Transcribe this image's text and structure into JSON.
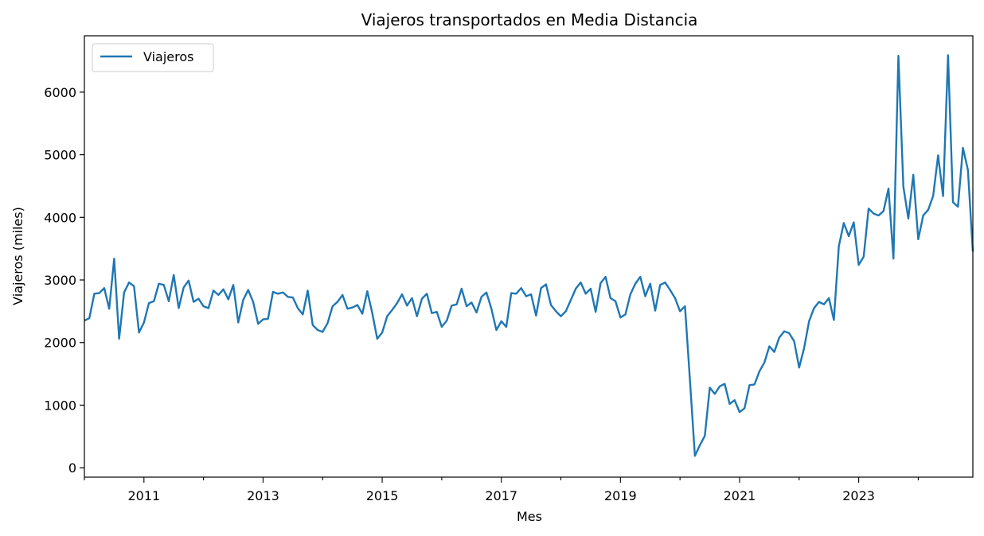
{
  "chart_data": {
    "type": "line",
    "title": "Viajeros transportados en Media Distancia",
    "xlabel": "Mes",
    "ylabel": "Viajeros (miles)",
    "x_start": "2010-01",
    "x_end": "2024-12",
    "xlim": [
      "2010-01",
      "2024-12"
    ],
    "ylim": [
      -150,
      6900
    ],
    "x_major_ticks": [
      "2011",
      "2013",
      "2015",
      "2017",
      "2019",
      "2021",
      "2023"
    ],
    "y_ticks": [
      0,
      1000,
      2000,
      3000,
      4000,
      5000,
      6000
    ],
    "grid": false,
    "legend": {
      "placement": "upper-left",
      "entries": [
        "Viajeros"
      ]
    },
    "color": "#1f77b4",
    "series": [
      {
        "name": "Viajeros",
        "values": [
          2350,
          2390,
          2780,
          2790,
          2870,
          2540,
          3340,
          2060,
          2800,
          2960,
          2900,
          2160,
          2320,
          2630,
          2660,
          2940,
          2920,
          2660,
          3080,
          2550,
          2880,
          2990,
          2650,
          2700,
          2580,
          2550,
          2830,
          2760,
          2850,
          2690,
          2920,
          2320,
          2680,
          2840,
          2650,
          2300,
          2370,
          2380,
          2810,
          2780,
          2800,
          2730,
          2720,
          2550,
          2450,
          2830,
          2280,
          2200,
          2170,
          2310,
          2580,
          2650,
          2760,
          2540,
          2560,
          2600,
          2460,
          2820,
          2470,
          2060,
          2160,
          2420,
          2520,
          2630,
          2770,
          2590,
          2710,
          2420,
          2700,
          2780,
          2470,
          2490,
          2250,
          2350,
          2590,
          2610,
          2860,
          2580,
          2640,
          2480,
          2730,
          2800,
          2540,
          2200,
          2340,
          2250,
          2790,
          2780,
          2870,
          2740,
          2770,
          2430,
          2870,
          2930,
          2600,
          2500,
          2420,
          2500,
          2680,
          2860,
          2960,
          2780,
          2860,
          2490,
          2950,
          3050,
          2710,
          2660,
          2400,
          2450,
          2770,
          2940,
          3050,
          2740,
          2940,
          2510,
          2920,
          2960,
          2840,
          2710,
          2500,
          2580,
          1400,
          190,
          360,
          510,
          1280,
          1180,
          1300,
          1340,
          1020,
          1080,
          890,
          950,
          1320,
          1330,
          1540,
          1680,
          1940,
          1850,
          2080,
          2180,
          2150,
          2020,
          1600,
          1910,
          2340,
          2550,
          2650,
          2610,
          2710,
          2360,
          3540,
          3910,
          3700,
          3920,
          3240,
          3370,
          4140,
          4060,
          4030,
          4100,
          4460,
          3340,
          6580,
          4490,
          3980,
          4680,
          3650,
          4030,
          4120,
          4340,
          4990,
          4340,
          6590,
          4240,
          4170,
          5110,
          4760,
          3450
        ]
      }
    ]
  }
}
